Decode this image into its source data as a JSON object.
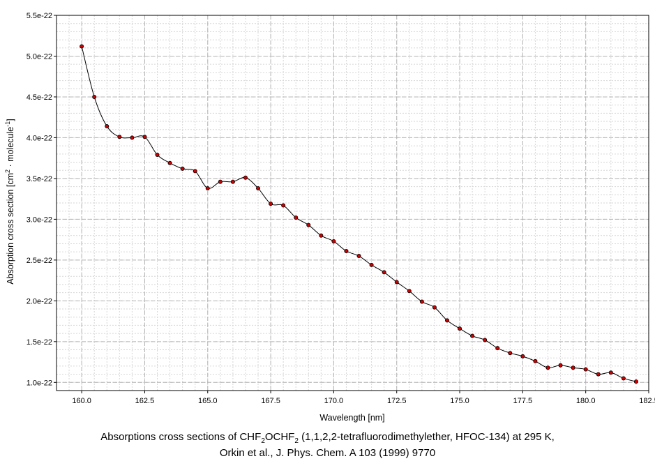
{
  "chart_data": {
    "type": "line",
    "title": "",
    "xlabel": "Wavelength [nm]",
    "ylabel": {
      "prefix": "Absorption cross section [cm",
      "sup1": "2",
      "middle": " · molecule",
      "sup2": "-1",
      "suffix": "]"
    },
    "xlim": [
      159,
      182.5
    ],
    "ylim": [
      9e-23,
      5.5e-22
    ],
    "x_ticks": [
      160.0,
      162.5,
      165.0,
      167.5,
      170.0,
      172.5,
      175.0,
      177.5,
      180.0,
      182.5
    ],
    "x_tick_labels": [
      "160.0",
      "162.5",
      "165.0",
      "167.5",
      "170.0",
      "172.5",
      "175.0",
      "177.5",
      "180.0",
      "182.5"
    ],
    "y_ticks": [
      1e-22,
      1.5e-22,
      2e-22,
      2.5e-22,
      3e-22,
      3.5e-22,
      4e-22,
      4.5e-22,
      5e-22,
      5.5e-22
    ],
    "y_tick_labels": [
      "1.0e-22",
      "1.5e-22",
      "2.0e-22",
      "2.5e-22",
      "3.0e-22",
      "3.5e-22",
      "4.0e-22",
      "4.5e-22",
      "5.0e-22",
      "5.5e-22"
    ],
    "grid": true,
    "marker_color": "#cc0000",
    "line_color": "#000000",
    "series": [
      {
        "x": [
          160.0,
          160.5,
          161.0,
          161.5,
          162.0,
          162.5,
          163.0,
          163.5,
          164.0,
          164.5,
          165.0,
          165.5,
          166.0,
          166.5,
          167.0,
          167.5,
          168.0,
          168.5,
          169.0,
          169.5,
          170.0,
          170.5,
          171.0,
          171.5,
          172.0,
          172.5,
          173.0,
          173.5,
          174.0,
          174.5,
          175.0,
          175.5,
          176.0,
          176.5,
          177.0,
          177.5,
          178.0,
          178.5,
          179.0,
          179.5,
          180.0,
          180.5,
          181.0,
          181.5,
          182.0
        ],
        "y": [
          5.12e-22,
          4.5e-22,
          4.14e-22,
          4.01e-22,
          4e-22,
          4.01e-22,
          3.79e-22,
          3.69e-22,
          3.62e-22,
          3.59e-22,
          3.38e-22,
          3.46e-22,
          3.46e-22,
          3.51e-22,
          3.38e-22,
          3.19e-22,
          3.17e-22,
          3.02e-22,
          2.93e-22,
          2.8e-22,
          2.73e-22,
          2.61e-22,
          2.55e-22,
          2.44e-22,
          2.35e-22,
          2.23e-22,
          2.12e-22,
          1.99e-22,
          1.92e-22,
          1.76e-22,
          1.66e-22,
          1.57e-22,
          1.52e-22,
          1.42e-22,
          1.36e-22,
          1.32e-22,
          1.26e-22,
          1.18e-22,
          1.21e-22,
          1.18e-22,
          1.16e-22,
          1.1e-22,
          1.12e-22,
          1.05e-22,
          1.01e-22
        ]
      }
    ]
  },
  "caption": {
    "line1_pre": "Absorptions cross sections of CHF",
    "line1_sub1": "2",
    "line1_mid": "OCHF",
    "line1_sub2": "2",
    "line1_post": " (1,1,2,2-tetrafluorodimethylether, HFOC-134) at 295 K,",
    "line2": "Orkin et al., J. Phys. Chem. A 103 (1999) 9770"
  }
}
